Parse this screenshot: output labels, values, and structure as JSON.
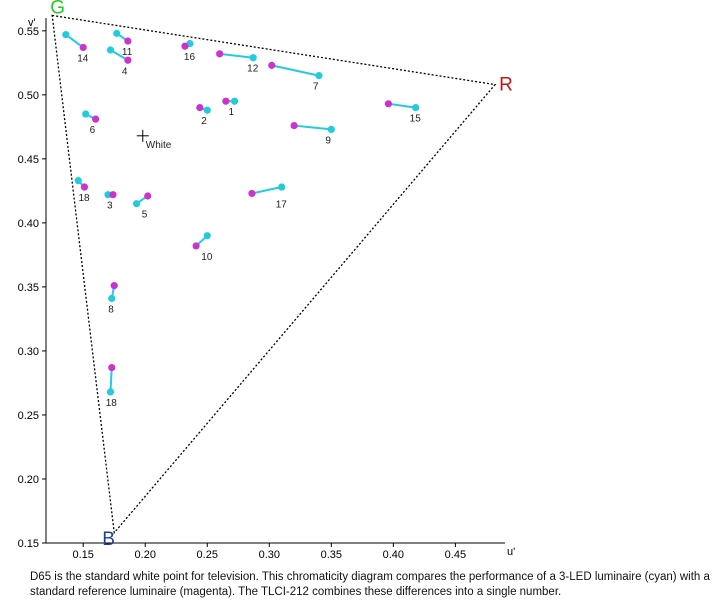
{
  "chart_data": {
    "type": "scatter",
    "title": "",
    "xlabel": "u'",
    "ylabel": "v'",
    "xlim": [
      0.12,
      0.49
    ],
    "ylim": [
      0.15,
      0.56
    ],
    "x_ticks": [
      "0.15",
      "0.20",
      "0.25",
      "0.30",
      "0.35",
      "0.40",
      "0.45"
    ],
    "x_tick_values": [
      0.15,
      0.2,
      0.25,
      0.3,
      0.35,
      0.4,
      0.45
    ],
    "y_ticks": [
      "0.15",
      "0.20",
      "0.25",
      "0.30",
      "0.35",
      "0.40",
      "0.45",
      "0.50",
      "0.55"
    ],
    "y_tick_values": [
      0.15,
      0.2,
      0.25,
      0.3,
      0.35,
      0.4,
      0.45,
      0.5,
      0.55
    ],
    "gamut": [
      {
        "name": "G",
        "u": 0.125,
        "v": 0.562,
        "color": "#22cc22"
      },
      {
        "name": "R",
        "u": 0.482,
        "v": 0.508,
        "color": "#cc1111"
      },
      {
        "name": "B",
        "u": 0.175,
        "v": 0.158,
        "color": "#1a3fa0"
      }
    ],
    "white_point": {
      "label": "White",
      "u": 0.198,
      "v": 0.468
    },
    "colors": {
      "led": "#22ccdd",
      "reference": "#cc33cc"
    },
    "pairs": [
      {
        "label": "14",
        "led": [
          0.136,
          0.547
        ],
        "ref": [
          0.15,
          0.537
        ]
      },
      {
        "label": "11",
        "led": [
          0.177,
          0.548
        ],
        "ref": [
          0.186,
          0.542
        ]
      },
      {
        "label": "4",
        "led": [
          0.172,
          0.535
        ],
        "ref": [
          0.186,
          0.527
        ]
      },
      {
        "label": "16",
        "led": [
          0.236,
          0.54
        ],
        "ref": [
          0.232,
          0.538
        ]
      },
      {
        "label": "12",
        "led": [
          0.287,
          0.529
        ],
        "ref": [
          0.26,
          0.532
        ]
      },
      {
        "label": "7",
        "led": [
          0.34,
          0.515
        ],
        "ref": [
          0.302,
          0.523
        ]
      },
      {
        "label": "15",
        "led": [
          0.418,
          0.49
        ],
        "ref": [
          0.396,
          0.493
        ]
      },
      {
        "label": "1",
        "led": [
          0.272,
          0.495
        ],
        "ref": [
          0.265,
          0.495
        ]
      },
      {
        "label": "2",
        "led": [
          0.25,
          0.488
        ],
        "ref": [
          0.244,
          0.49
        ]
      },
      {
        "label": "6",
        "led": [
          0.152,
          0.485
        ],
        "ref": [
          0.16,
          0.481
        ]
      },
      {
        "label": "9",
        "led": [
          0.35,
          0.473
        ],
        "ref": [
          0.32,
          0.476
        ]
      },
      {
        "label": "18",
        "led": [
          0.146,
          0.433
        ],
        "ref": [
          0.151,
          0.428
        ]
      },
      {
        "label": "3",
        "led": [
          0.17,
          0.422
        ],
        "ref": [
          0.174,
          0.422
        ]
      },
      {
        "label": "5",
        "led": [
          0.193,
          0.415
        ],
        "ref": [
          0.202,
          0.421
        ]
      },
      {
        "label": "17",
        "led": [
          0.31,
          0.428
        ],
        "ref": [
          0.286,
          0.423
        ]
      },
      {
        "label": "10",
        "led": [
          0.25,
          0.39
        ],
        "ref": [
          0.241,
          0.382
        ]
      },
      {
        "label": "8",
        "led": [
          0.173,
          0.341
        ],
        "ref": [
          0.175,
          0.351
        ]
      },
      {
        "label": "18",
        "led": [
          0.172,
          0.268
        ],
        "ref": [
          0.173,
          0.287
        ]
      }
    ]
  },
  "caption": "D65 is the standard white point for television. This chromaticity diagram compares the performance of a 3-LED luminaire (cyan) with a standard reference luminaire (magenta). The TLCI-212 combines these differences into a single number."
}
